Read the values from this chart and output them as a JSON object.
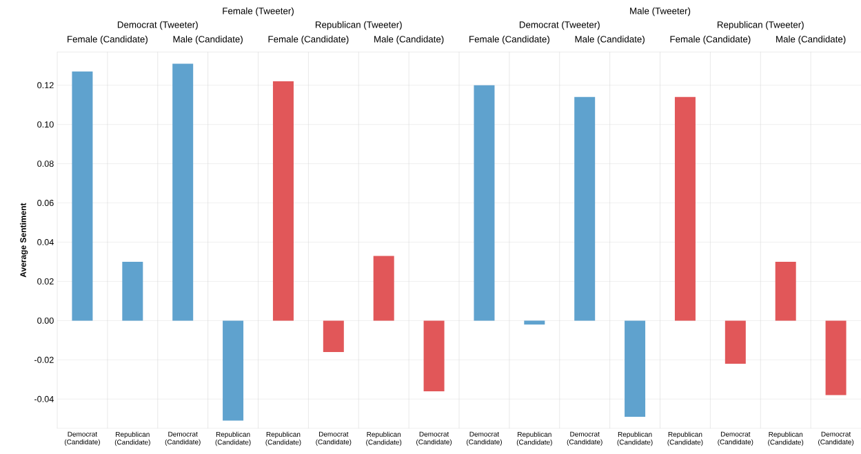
{
  "chart_data": {
    "type": "bar",
    "ylabel": "Average Sentiment",
    "categories": [
      "Democrat (Candidate)",
      "Republican (Candidate)",
      "Democrat (Candidate)",
      "Republican (Candidate)",
      "Republican (Candidate)",
      "Democrat (Candidate)",
      "Republican (Candidate)",
      "Democrat (Candidate)",
      "Democrat (Candidate)",
      "Republican (Candidate)",
      "Democrat (Candidate)",
      "Republican (Candidate)",
      "Republican (Candidate)",
      "Democrat (Candidate)",
      "Republican (Candidate)",
      "Democrat (Candidate)"
    ],
    "values": [
      0.127,
      0.03,
      0.131,
      -0.051,
      0.122,
      -0.016,
      0.033,
      -0.036,
      0.12,
      -0.002,
      0.114,
      -0.049,
      0.114,
      -0.022,
      0.03,
      -0.038
    ],
    "colors": [
      "#5fa2ce",
      "#5fa2ce",
      "#5fa2ce",
      "#5fa2ce",
      "#e15759",
      "#e15759",
      "#e15759",
      "#e15759",
      "#5fa2ce",
      "#5fa2ce",
      "#5fa2ce",
      "#5fa2ce",
      "#e15759",
      "#e15759",
      "#e15759",
      "#e15759"
    ],
    "ylim": [
      -0.055,
      0.137
    ],
    "yticks": [
      {
        "value": -0.04,
        "label": "-0.04"
      },
      {
        "value": -0.02,
        "label": "-0.02"
      },
      {
        "value": 0,
        "label": "0.00"
      },
      {
        "value": 0.02,
        "label": "0.02"
      },
      {
        "value": 0.04,
        "label": "0.04"
      },
      {
        "value": 0.06,
        "label": "0.06"
      },
      {
        "value": 0.08,
        "label": "0.08"
      },
      {
        "value": 0.1,
        "label": "0.10"
      },
      {
        "value": 0.12,
        "label": "0.12"
      }
    ],
    "grid": "y",
    "annotations": [
      "Female (Tweeter)",
      "Male (Tweeter)",
      "Democrat (Tweeter)",
      "Republican (Tweeter)",
      "Democrat (Tweeter)",
      "Republican (Tweeter)",
      "Female (Candidate)",
      "Male (Candidate)",
      "Female (Candidate)",
      "Male (Candidate)",
      "Female (Candidate)",
      "Male (Candidate)",
      "Female (Candidate)",
      "Male (Candidate)"
    ]
  }
}
